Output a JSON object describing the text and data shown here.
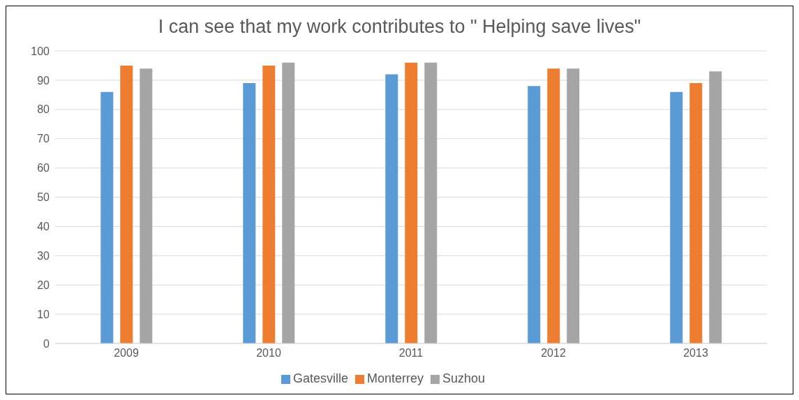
{
  "chart_data": {
    "type": "bar",
    "title": "I can see that my work contributes to \" Helping save lives\"",
    "categories": [
      "2009",
      "2010",
      "2011",
      "2012",
      "2013"
    ],
    "series": [
      {
        "name": "Gatesville",
        "color": "#5b9bd5",
        "values": [
          86,
          89,
          92,
          88,
          86
        ]
      },
      {
        "name": "Monterrey",
        "color": "#ed7d31",
        "values": [
          95,
          95,
          96,
          94,
          89
        ]
      },
      {
        "name": "Suzhou",
        "color": "#a5a5a5",
        "values": [
          94,
          96,
          96,
          94,
          93
        ]
      }
    ],
    "ylim": [
      0,
      100
    ],
    "yticks": [
      0,
      10,
      20,
      30,
      40,
      50,
      60,
      70,
      80,
      90,
      100
    ],
    "grid": "y",
    "legend": "bottom"
  }
}
